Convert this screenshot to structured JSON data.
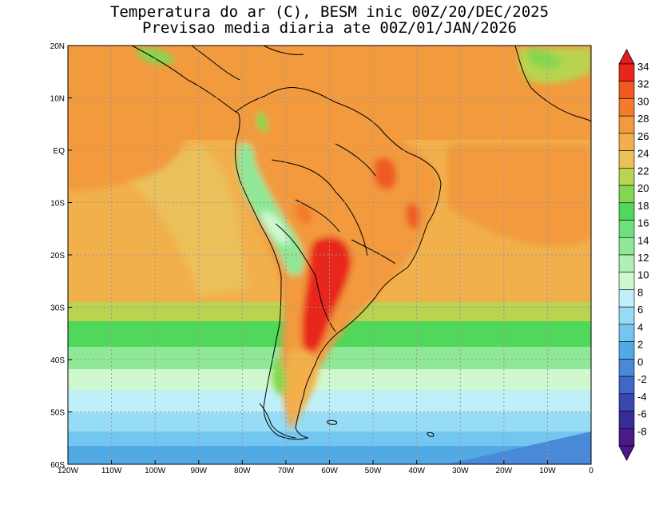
{
  "title": {
    "line1": "Temperatura do ar (C), BESM inic 00Z/20/DEC/2025",
    "line2": "Previsao media diaria ate 00Z/01/JAN/2026"
  },
  "map": {
    "lon_range": [
      -120,
      0
    ],
    "lat_range": [
      -60,
      20
    ],
    "grid": true,
    "x_ticks": [
      {
        "lon": -120,
        "label": "120W"
      },
      {
        "lon": -110,
        "label": "110W"
      },
      {
        "lon": -100,
        "label": "100W"
      },
      {
        "lon": -90,
        "label": "90W"
      },
      {
        "lon": -80,
        "label": "80W"
      },
      {
        "lon": -70,
        "label": "70W"
      },
      {
        "lon": -60,
        "label": "60W"
      },
      {
        "lon": -50,
        "label": "50W"
      },
      {
        "lon": -40,
        "label": "40W"
      },
      {
        "lon": -30,
        "label": "30W"
      },
      {
        "lon": -20,
        "label": "20W"
      },
      {
        "lon": -10,
        "label": "10W"
      },
      {
        "lon": 0,
        "label": "0"
      }
    ],
    "y_ticks": [
      {
        "lat": 20,
        "label": "20N"
      },
      {
        "lat": 10,
        "label": "10N"
      },
      {
        "lat": 0,
        "label": "EQ"
      },
      {
        "lat": -10,
        "label": "10S"
      },
      {
        "lat": -20,
        "label": "20S"
      },
      {
        "lat": -30,
        "label": "30S"
      },
      {
        "lat": -40,
        "label": "40S"
      },
      {
        "lat": -50,
        "label": "50S"
      },
      {
        "lat": -60,
        "label": "60S"
      }
    ]
  },
  "colorbar": {
    "labels": [
      "34",
      "32",
      "30",
      "28",
      "26",
      "24",
      "22",
      "20",
      "18",
      "16",
      "14",
      "12",
      "10",
      "8",
      "6",
      "4",
      "2",
      "0",
      "-2",
      "-4",
      "-6",
      "-8"
    ],
    "colors": [
      "#e8261c",
      "#f05a22",
      "#f27c2c",
      "#f29a3e",
      "#f2b04c",
      "#ebc05a",
      "#b8d450",
      "#84d650",
      "#4fd85a",
      "#6fe07a",
      "#8fe898",
      "#b0f0b4",
      "#d0f8d0",
      "#bff0fa",
      "#96dcf6",
      "#72c6f0",
      "#52aae4",
      "#4a88d8",
      "#3f66c8",
      "#3848b0",
      "#3a2c98",
      "#4a1a88"
    ],
    "top_arrow_color": "#e01c1c",
    "bottom_arrow_color": "#4a1a88"
  },
  "chart_data": {
    "type": "heatmap",
    "title": "Temperatura do ar (C), BESM inic 00Z/20/DEC/2025 / Previsao media diaria ate 00Z/01/JAN/2026",
    "variable": "air temperature (C)",
    "levels": [
      -8,
      -6,
      -4,
      -2,
      0,
      2,
      4,
      6,
      8,
      10,
      12,
      14,
      16,
      18,
      20,
      22,
      24,
      26,
      28,
      30,
      32,
      34
    ],
    "zonal_bands": [
      {
        "lat_from": 20,
        "lat_to": 5,
        "value_range": [
          26,
          28
        ]
      },
      {
        "lat_from": 5,
        "lat_to": -30,
        "value_range": [
          24,
          26
        ]
      },
      {
        "lat_from": -30,
        "lat_to": -36,
        "value_range": [
          20,
          22
        ]
      },
      {
        "lat_from": -36,
        "lat_to": -42,
        "value_range": [
          16,
          18
        ]
      },
      {
        "lat_from": -42,
        "lat_to": -48,
        "value_range": [
          12,
          14
        ]
      },
      {
        "lat_from": -48,
        "lat_to": -53,
        "value_range": [
          8,
          10
        ]
      },
      {
        "lat_from": -53,
        "lat_to": -57,
        "value_range": [
          4,
          6
        ]
      },
      {
        "lat_from": -57,
        "lat_to": -60,
        "value_range": [
          0,
          2
        ]
      }
    ],
    "notable_regions": [
      {
        "name": "Chaco / Paraguay / N Argentina",
        "value_range": [
          30,
          32
        ]
      },
      {
        "name": "NE Brazil interior",
        "value_range": [
          28,
          30
        ]
      },
      {
        "name": "Andes cordillera",
        "value_range": [
          10,
          18
        ]
      }
    ]
  }
}
